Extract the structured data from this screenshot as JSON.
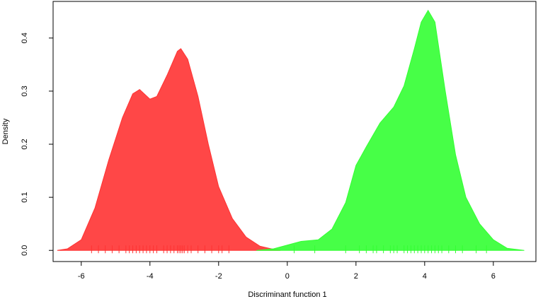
{
  "chart_data": {
    "type": "density",
    "xlabel": "Discriminant function 1",
    "ylabel": "Density",
    "xlim": [
      -6.82,
      7.24
    ],
    "ylim": [
      -0.021,
      0.469
    ],
    "xticks": [
      -6,
      -4,
      -2,
      0,
      2,
      4,
      6
    ],
    "yticks": [
      {
        "value": 0,
        "label": "0.0"
      },
      0.1,
      0.2,
      0.3,
      0.4
    ],
    "series": [
      {
        "color": "#ff3333",
        "x": [
          -6.7,
          -6.4,
          -6.0,
          -5.6,
          -5.2,
          -4.8,
          -4.5,
          -4.3,
          -4.0,
          -3.8,
          -3.5,
          -3.2,
          -3.1,
          -2.9,
          -2.6,
          -2.3,
          -2.0,
          -1.6,
          -1.2,
          -0.8,
          -0.4,
          -0.2
        ],
        "values": [
          0,
          0.003,
          0.02,
          0.08,
          0.17,
          0.25,
          0.295,
          0.303,
          0.285,
          0.29,
          0.33,
          0.375,
          0.38,
          0.36,
          0.29,
          0.2,
          0.12,
          0.06,
          0.025,
          0.008,
          0.002,
          0
        ],
        "rug": [
          -5.7,
          -5.5,
          -5.3,
          -5.1,
          -4.9,
          -4.7,
          -4.6,
          -4.5,
          -4.4,
          -4.3,
          -4.2,
          -4.1,
          -4.0,
          -3.9,
          -3.8,
          -3.6,
          -3.5,
          -3.4,
          -3.3,
          -3.2,
          -3.15,
          -3.1,
          -3.05,
          -3.0,
          -2.9,
          -2.8,
          -2.6,
          -2.4,
          -2.2,
          -2.0,
          -1.9,
          -1.7
        ]
      },
      {
        "color": "#33ff33",
        "x": [
          -0.9,
          -0.4,
          0,
          0.4,
          0.9,
          1.3,
          1.7,
          2.0,
          2.3,
          2.7,
          3.1,
          3.4,
          3.7,
          3.9,
          4.1,
          4.3,
          4.6,
          4.9,
          5.2,
          5.6,
          6.0,
          6.4,
          6.9
        ],
        "values": [
          0,
          0.003,
          0.01,
          0.017,
          0.02,
          0.04,
          0.09,
          0.16,
          0.195,
          0.24,
          0.27,
          0.31,
          0.38,
          0.43,
          0.452,
          0.43,
          0.3,
          0.18,
          0.1,
          0.05,
          0.02,
          0.004,
          0
        ],
        "rug": [
          0.2,
          0.8,
          1.7,
          2.1,
          2.3,
          2.5,
          2.6,
          2.8,
          3.0,
          3.1,
          3.2,
          3.4,
          3.5,
          3.6,
          3.7,
          3.8,
          3.9,
          4.0,
          4.1,
          4.2,
          4.3,
          4.4,
          4.5,
          4.7,
          4.9,
          5.1,
          5.5,
          5.8
        ]
      }
    ]
  }
}
